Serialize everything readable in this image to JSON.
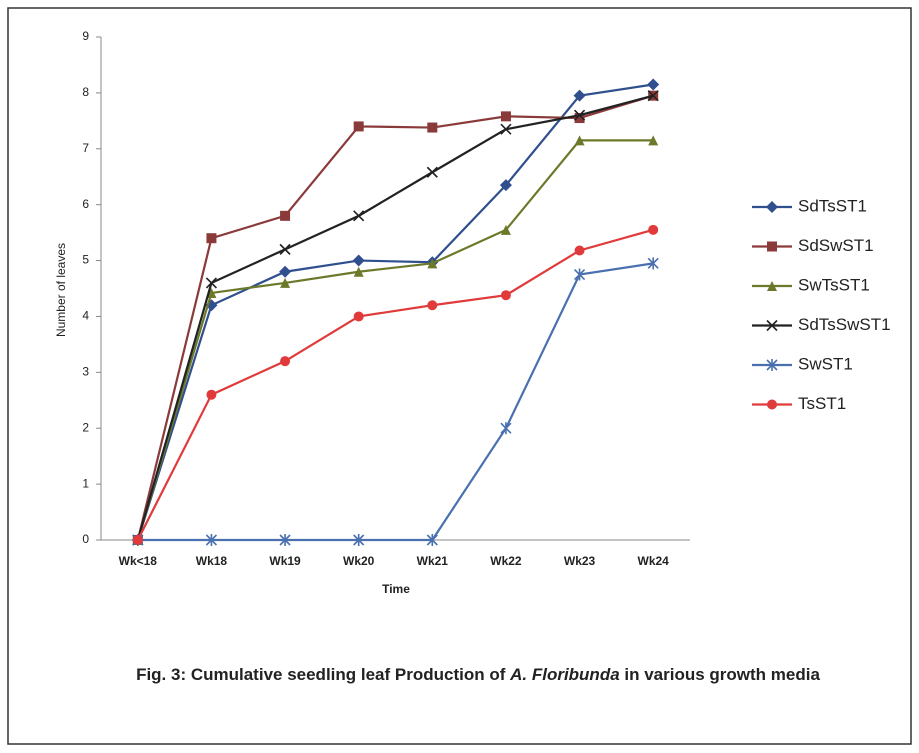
{
  "chart_data": {
    "type": "line",
    "y_label": "Number of leaves",
    "x_label": "Time",
    "categories": [
      "Wk<18",
      "Wk18",
      "Wk19",
      "Wk20",
      "Wk21",
      "Wk22",
      "Wk23",
      "Wk24"
    ],
    "ylim": [
      0,
      9
    ],
    "yticks": [
      0,
      1,
      2,
      3,
      4,
      5,
      6,
      7,
      8,
      9
    ],
    "series": [
      {
        "name": "SdTsST1",
        "color": "#2f4f8f",
        "marker": "diamond",
        "values": [
          0,
          4.2,
          4.8,
          5.0,
          4.97,
          6.35,
          7.95,
          8.15
        ]
      },
      {
        "name": "SdSwST1",
        "color": "#8b3a3a",
        "marker": "square",
        "values": [
          0,
          5.4,
          5.8,
          7.4,
          7.38,
          7.58,
          7.55,
          7.95
        ]
      },
      {
        "name": "SwTsST1",
        "color": "#6b7a2a",
        "marker": "triangle",
        "values": [
          0,
          4.42,
          4.6,
          4.8,
          4.95,
          5.55,
          7.15,
          7.15
        ]
      },
      {
        "name": "SdTsSwST1",
        "color": "#222222",
        "marker": "x",
        "values": [
          0,
          4.6,
          5.2,
          5.8,
          6.58,
          7.35,
          7.6,
          7.95
        ]
      },
      {
        "name": "SwST1",
        "color": "#4a70b0",
        "marker": "star",
        "values": [
          0,
          0,
          0,
          0,
          0,
          2.0,
          4.75,
          4.95
        ]
      },
      {
        "name": "TsST1",
        "color": "#e03a3a",
        "marker": "circle",
        "values": [
          0,
          2.6,
          3.2,
          4.0,
          4.2,
          4.38,
          5.18,
          5.55
        ]
      }
    ],
    "caption_parts": [
      "Fig. 3: Cumulative seedling leaf Production of ",
      "A. Floribunda",
      " in various growth media"
    ]
  }
}
